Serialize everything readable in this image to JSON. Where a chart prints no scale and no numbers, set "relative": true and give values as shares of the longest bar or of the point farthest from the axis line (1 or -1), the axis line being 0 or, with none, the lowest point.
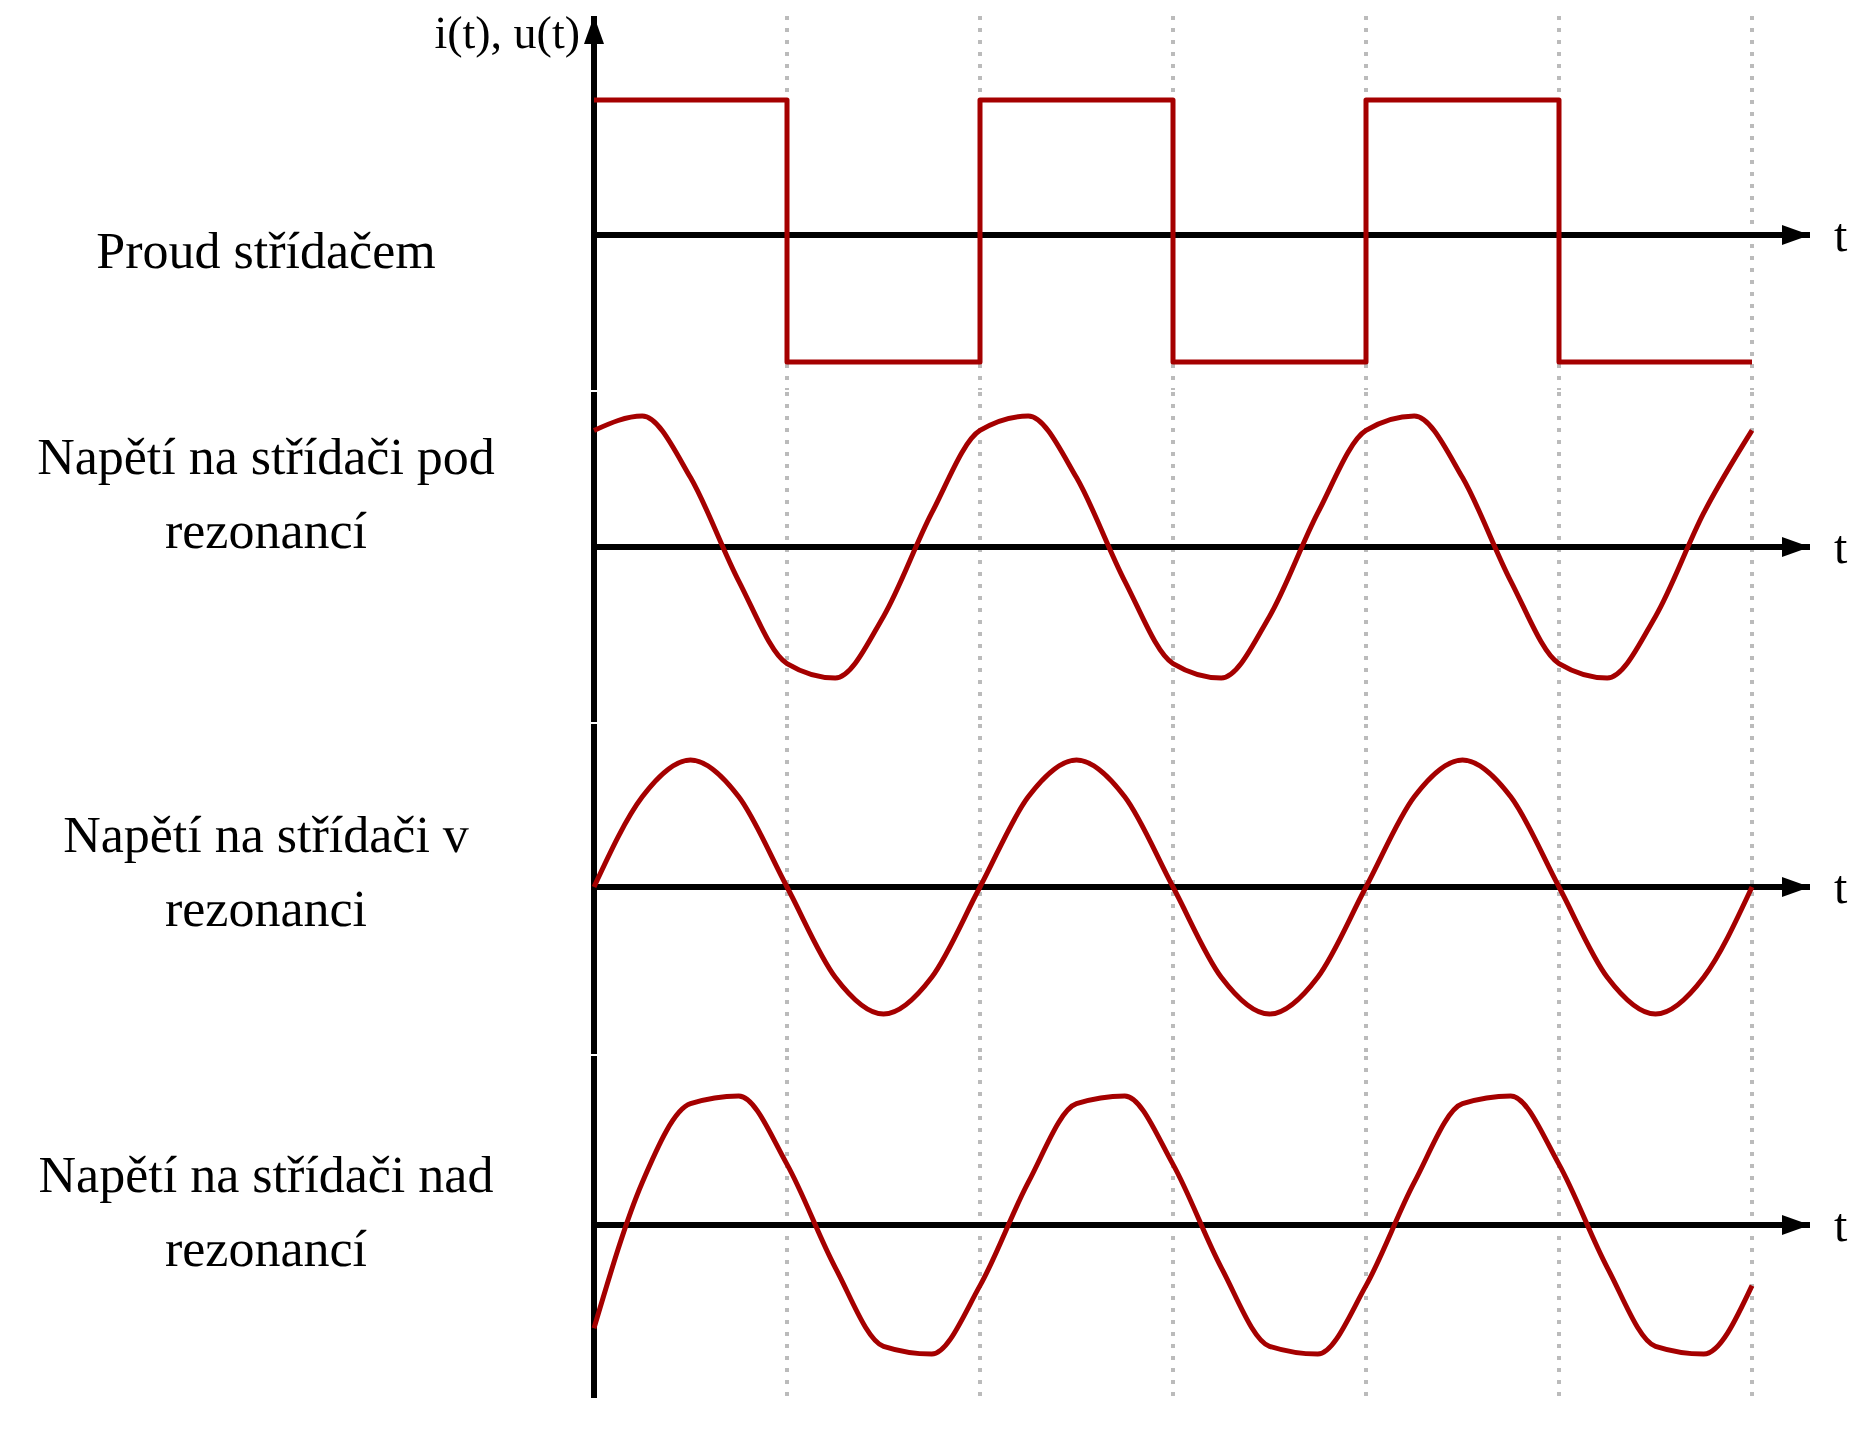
{
  "chart_data": [
    {
      "type": "step",
      "title": "i(t), u(t)",
      "ylabel": "Proud střídačem",
      "xlabel": "t",
      "relative": true,
      "categories": [
        null,
        null,
        null,
        null,
        null,
        null,
        null
      ],
      "color": "#a50000",
      "values": [
        1,
        -0.94,
        1,
        -0.94,
        1,
        -0.94,
        -0.94
      ],
      "grid": "x",
      "marker": "none"
    },
    {
      "type": "line",
      "ylabel": "Napětí na střídači pod rezonancí",
      "xlabel": "t",
      "relative": true,
      "categories": [
        null,
        null,
        null,
        null,
        null,
        null,
        null,
        null,
        null,
        null,
        null,
        null,
        null,
        null,
        null,
        null,
        null,
        null,
        null,
        null,
        null,
        null,
        null,
        null,
        null
      ],
      "color": "#a50000",
      "values": [
        0.89,
        1,
        0.53,
        -0.26,
        -0.89,
        -1,
        -0.53,
        0.26,
        0.89,
        1,
        0.53,
        -0.26,
        -0.89,
        -1,
        -0.53,
        0.26,
        0.89,
        1,
        0.53,
        -0.26,
        -0.89,
        -1,
        -0.53,
        0.26,
        0.89
      ],
      "grid": "x",
      "marker": "none"
    },
    {
      "type": "line",
      "ylabel": "Napětí na střídači v rezonanci",
      "xlabel": "t",
      "relative": true,
      "categories": [
        null,
        null,
        null,
        null,
        null,
        null,
        null,
        null,
        null,
        null,
        null,
        null,
        null,
        null,
        null,
        null,
        null,
        null,
        null,
        null,
        null,
        null,
        null,
        null,
        null
      ],
      "color": "#a50000",
      "values": [
        0,
        0.71,
        1,
        0.71,
        0,
        -0.71,
        -1,
        -0.71,
        0,
        0.71,
        1,
        0.71,
        0,
        -0.71,
        -1,
        -0.71,
        0,
        0.71,
        1,
        0.71,
        0,
        -0.71,
        -1,
        -0.71,
        0
      ],
      "grid": "x",
      "marker": "none"
    },
    {
      "type": "line",
      "ylabel": "Napětí na střídači nad rezonancí",
      "xlabel": "t",
      "relative": true,
      "categories": [
        null,
        null,
        null,
        null,
        null,
        null,
        null,
        null,
        null,
        null,
        null,
        null,
        null,
        null,
        null,
        null,
        null,
        null,
        null,
        null,
        null,
        null,
        null,
        null,
        null
      ],
      "color": "#a50000",
      "values": [
        -0.8,
        0.33,
        0.94,
        1,
        0.47,
        -0.33,
        -0.94,
        -1,
        -0.47,
        0.33,
        0.94,
        1,
        0.47,
        -0.33,
        -0.94,
        -1,
        -0.47,
        0.33,
        0.94,
        1,
        0.47,
        -0.33,
        -0.94,
        -1,
        -0.47
      ],
      "grid": "x",
      "marker": "none"
    }
  ]
}
